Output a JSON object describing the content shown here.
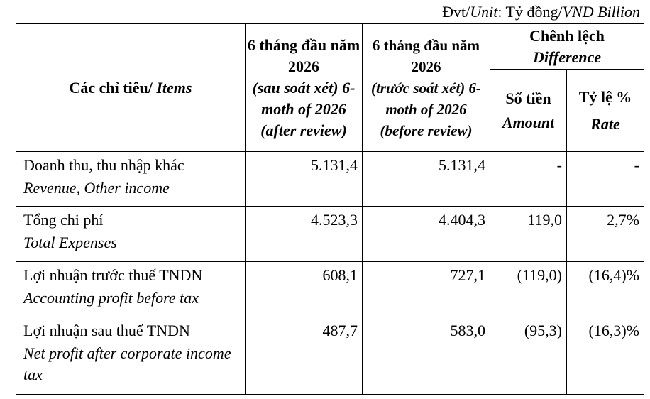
{
  "unit": {
    "parts": [
      "Đvt/",
      "Unit",
      ": Tỷ đồng/",
      "VND Billion"
    ]
  },
  "table": {
    "header": {
      "items": {
        "vi": "Các chỉ tiêu/ ",
        "en": "Items"
      },
      "after": {
        "vi": "6 tháng đầu năm 2026",
        "en": "(sau soát xét) 6-moth of 2026 (after review)"
      },
      "before": {
        "vi": "6 tháng đầu năm 2026",
        "en": "(trước soát xét) 6-moth of 2026 (before review)"
      },
      "difference": {
        "vi": "Chênh lệch",
        "en": "Difference"
      },
      "amount": {
        "vi": "Số tiền",
        "en": "Amount"
      },
      "rate": {
        "vi": "Tỷ lệ %",
        "en": "Rate"
      }
    },
    "rows": [
      {
        "vi": "Doanh thu, thu nhập khác",
        "en": "Revenue, Other income",
        "values": [
          "5.131,4",
          "5.131,4",
          "-",
          "-"
        ]
      },
      {
        "vi": "Tổng chi phí",
        "en": "Total Expenses",
        "values": [
          "4.523,3",
          "4.404,3",
          "119,0",
          "2,7%"
        ]
      },
      {
        "vi": "Lợi nhuận trước thuế TNDN",
        "en": "Accounting profit before tax",
        "values": [
          "608,1",
          "727,1",
          "(119,0)",
          "(16,4)%"
        ]
      },
      {
        "vi": "Lợi nhuận sau thuế TNDN",
        "en": "Net profit after corporate income tax",
        "values": [
          "487,7",
          "583,0",
          "(95,3)",
          "(16,3)%"
        ]
      }
    ]
  }
}
